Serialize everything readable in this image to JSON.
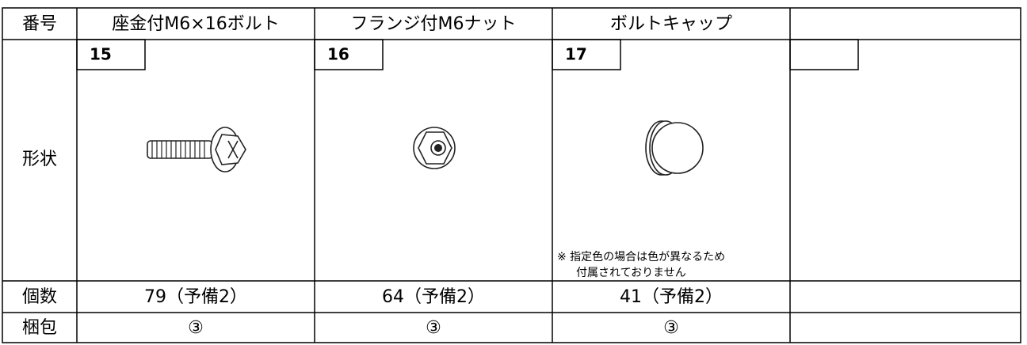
{
  "table": {
    "row_labels": [
      "番号",
      "形状",
      "個数",
      "梱包"
    ],
    "items": [
      {
        "name": "座金付M6×16ボルト",
        "number": 15,
        "quantity": "79（予備2）",
        "packing": "③"
      },
      {
        "name": "フランジ付M6ナット",
        "number": 16,
        "quantity": "64（予備2）",
        "packing": "③"
      },
      {
        "name": "ボルトキャップ",
        "number": 17,
        "note": [
          "※ 指定色の場合は色が異なるため",
          "付属されておりません"
        ],
        "quantity": "41（予備2）",
        "packing": "③"
      }
    ]
  }
}
